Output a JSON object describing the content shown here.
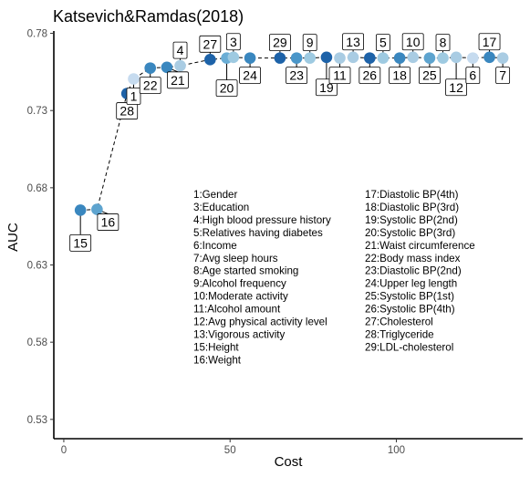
{
  "chart_data": {
    "type": "scatter",
    "title": "Katsevich&Ramdas(2018)",
    "xlabel": "Cost",
    "ylabel": "AUC",
    "xlim": [
      -3,
      138
    ],
    "ylim": [
      0.5175,
      0.7815
    ],
    "x_ticks": [
      0,
      50,
      100
    ],
    "y_ticks": [
      0.53,
      0.58,
      0.63,
      0.68,
      0.73,
      0.78
    ],
    "y_tick_labels": [
      "0.53",
      "0.58",
      "0.63",
      "0.68",
      "0.73",
      "0.78"
    ],
    "grid": false,
    "points": [
      {
        "label": "15",
        "x": 5,
        "y": 0.6655,
        "color": "#3a87bf",
        "label_pos": "below"
      },
      {
        "label": "16",
        "x": 10,
        "y": 0.666,
        "color": "#5ea4cf",
        "label_pos": "below-right"
      },
      {
        "label": "28",
        "x": 19,
        "y": 0.741,
        "color": "#1d62a8",
        "label_pos": "below"
      },
      {
        "label": "1",
        "x": 21,
        "y": 0.7505,
        "color": "#c6dbef",
        "label_pos": "below"
      },
      {
        "label": "22",
        "x": 26,
        "y": 0.7575,
        "color": "#3a87bf",
        "label_pos": "below"
      },
      {
        "label": "21",
        "x": 31,
        "y": 0.758,
        "color": "#3a87bf",
        "label_pos": "below-right"
      },
      {
        "label": "4",
        "x": 35,
        "y": 0.759,
        "color": "#a9cce3",
        "label_pos": "above"
      },
      {
        "label": "27",
        "x": 44,
        "y": 0.763,
        "color": "#1d62a8",
        "label_pos": "above"
      },
      {
        "label": "20",
        "x": 49,
        "y": 0.764,
        "color": "#6aadd5",
        "label_pos": "below"
      },
      {
        "label": "3",
        "x": 51,
        "y": 0.7645,
        "color": "#9ecae1",
        "label_pos": "above"
      },
      {
        "label": "24",
        "x": 56,
        "y": 0.764,
        "color": "#3a87bf",
        "label_pos": "below"
      },
      {
        "label": "29",
        "x": 65,
        "y": 0.764,
        "color": "#1d62a8",
        "label_pos": "above"
      },
      {
        "label": "23",
        "x": 70,
        "y": 0.764,
        "color": "#4a96c9",
        "label_pos": "below"
      },
      {
        "label": "9",
        "x": 74,
        "y": 0.764,
        "color": "#9ecae1",
        "label_pos": "above"
      },
      {
        "label": "19",
        "x": 79,
        "y": 0.7645,
        "color": "#1d62a8",
        "label_pos": "below"
      },
      {
        "label": "11",
        "x": 83,
        "y": 0.764,
        "color": "#a9cce3",
        "label_pos": "below"
      },
      {
        "label": "13",
        "x": 87,
        "y": 0.7645,
        "color": "#a9cce3",
        "label_pos": "above"
      },
      {
        "label": "26",
        "x": 92,
        "y": 0.764,
        "color": "#1d62a8",
        "label_pos": "below"
      },
      {
        "label": "5",
        "x": 96,
        "y": 0.764,
        "color": "#9ecae1",
        "label_pos": "above"
      },
      {
        "label": "18",
        "x": 101,
        "y": 0.764,
        "color": "#3a87bf",
        "label_pos": "below"
      },
      {
        "label": "10",
        "x": 105,
        "y": 0.7645,
        "color": "#a9cce3",
        "label_pos": "above"
      },
      {
        "label": "25",
        "x": 110,
        "y": 0.764,
        "color": "#5ea4cf",
        "label_pos": "below"
      },
      {
        "label": "8",
        "x": 114,
        "y": 0.764,
        "color": "#9ecae1",
        "label_pos": "above"
      },
      {
        "label": "12",
        "x": 118,
        "y": 0.7645,
        "color": "#a9cce3",
        "label_pos": "below"
      },
      {
        "label": "6",
        "x": 123,
        "y": 0.764,
        "color": "#c6dbef",
        "label_pos": "below"
      },
      {
        "label": "17",
        "x": 128,
        "y": 0.7645,
        "color": "#3a87bf",
        "label_pos": "above"
      },
      {
        "label": "7",
        "x": 132,
        "y": 0.764,
        "color": "#a9cce3",
        "label_pos": "below"
      }
    ],
    "trend_line": {
      "style": "dashed",
      "color": "#000000",
      "x": [
        5,
        10,
        19,
        21,
        26,
        31,
        35,
        44,
        49,
        51,
        56,
        65,
        70,
        74,
        79,
        83,
        87,
        92,
        96,
        101,
        105,
        110,
        114,
        118,
        123,
        128,
        132
      ],
      "y": [
        0.6655,
        0.666,
        0.741,
        0.7505,
        0.7575,
        0.758,
        0.759,
        0.763,
        0.764,
        0.7645,
        0.764,
        0.764,
        0.764,
        0.764,
        0.7645,
        0.764,
        0.7645,
        0.764,
        0.764,
        0.764,
        0.7645,
        0.764,
        0.764,
        0.7645,
        0.764,
        0.7645,
        0.764
      ]
    },
    "legend_left": [
      "1:Gender",
      "3:Education",
      "4:High blood pressure history",
      "5:Relatives having diabetes",
      "6:Income",
      "7:Avg sleep hours",
      "8:Age started smoking",
      "9:Alcohol frequency",
      "10:Moderate activity",
      "11:Alcohol amount",
      "12:Avg physical activity level",
      "13:Vigorous activity",
      "15:Height",
      "16:Weight"
    ],
    "legend_right": [
      "17:Diastolic BP(4th)",
      "18:Diastolic BP(3rd)",
      "19:Systolic BP(2nd)",
      "20:Systolic BP(3rd)",
      "21:Waist circumference",
      "22:Body mass index",
      "23:Diastolic BP(2nd)",
      "24:Upper leg length",
      "25:Systolic BP(1st)",
      "26:Systolic BP(4th)",
      "27:Cholesterol",
      "28:Triglyceride",
      "29:LDL-cholesterol"
    ],
    "styles": {
      "axis_color": "#000000",
      "tick_label_color": "#4d4d4d",
      "label_box_fill": "#ffffff",
      "label_box_stroke": "#000000"
    }
  }
}
